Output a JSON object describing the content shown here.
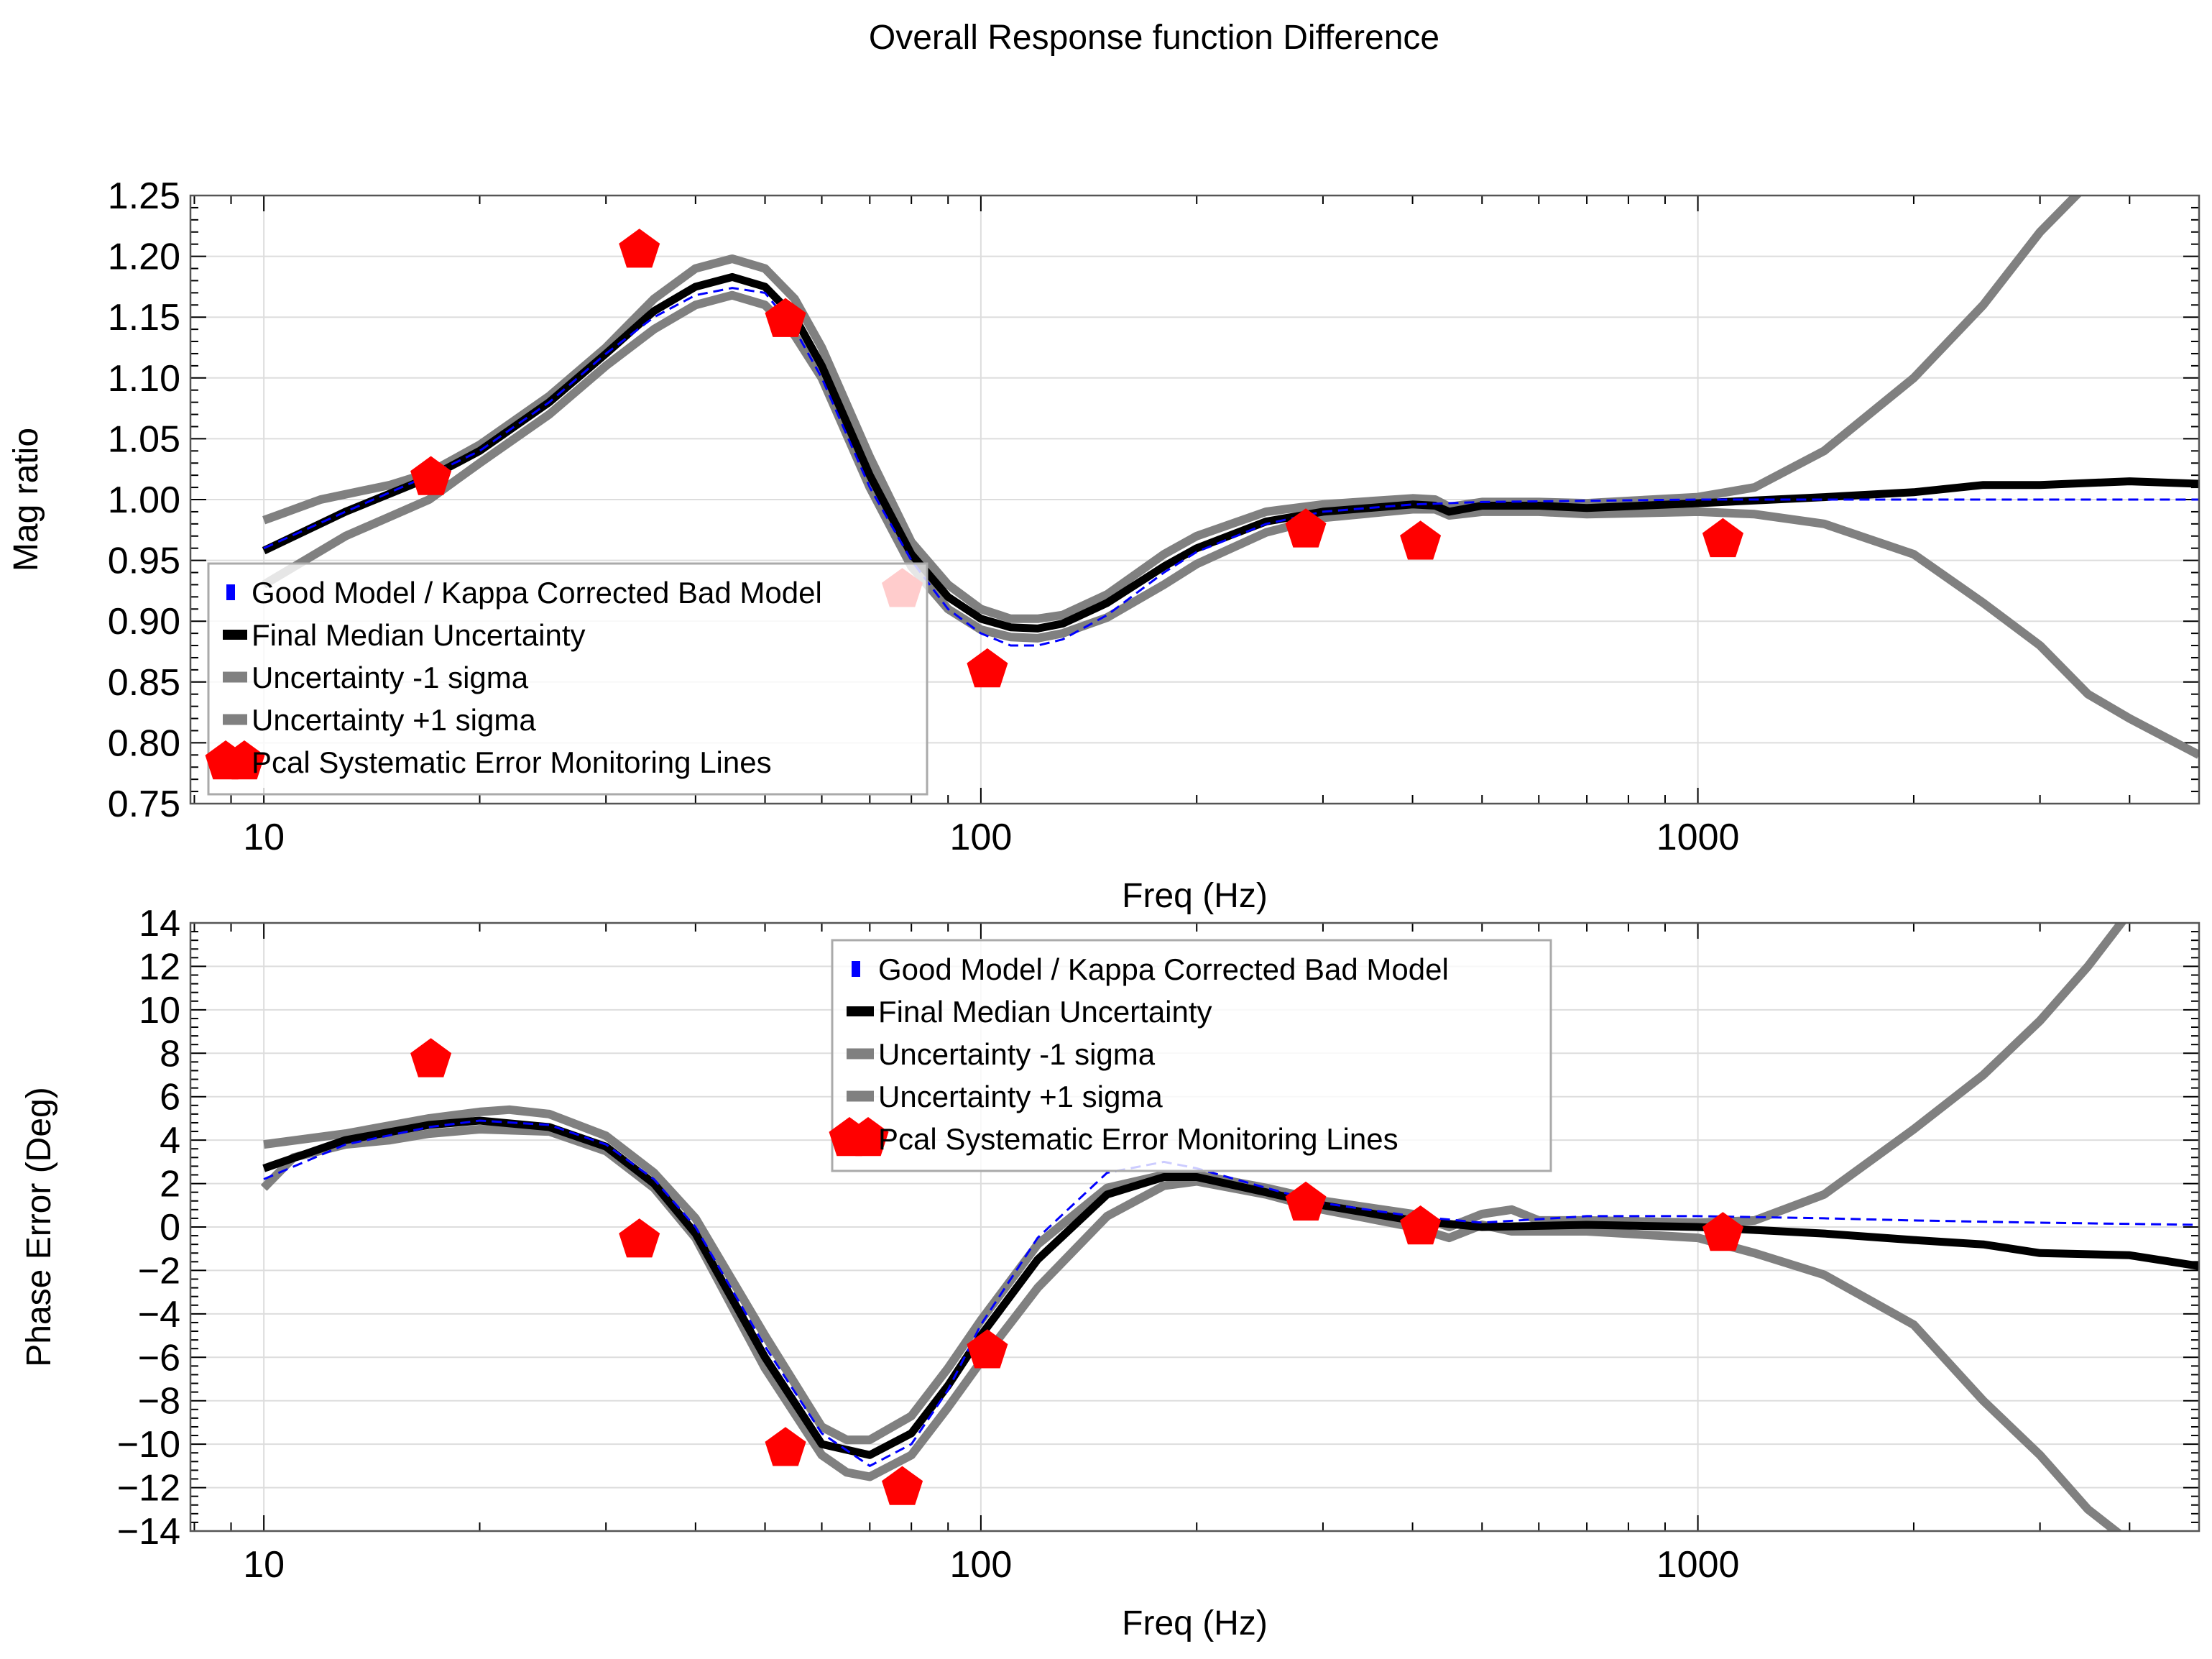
{
  "figure": {
    "suptitle": "Overall Response function Difference"
  },
  "styles": {
    "good_model_color": "#0000ff",
    "median_color": "#000000",
    "sigma_color": "#808080",
    "pcal_color": "#ff0000",
    "legend_border": "#aaaaaa",
    "grid_color": "#dddddd"
  },
  "chart_data": [
    {
      "type": "line",
      "panel": "magnitude",
      "xlabel": "Freq (Hz)",
      "ylabel": "Mag ratio",
      "xscale": "log",
      "xlim": [
        7.9,
        5000
      ],
      "ylim": [
        0.75,
        1.25
      ],
      "xticks": [
        10,
        100,
        1000
      ],
      "xtick_labels": [
        "10",
        "100",
        "1000"
      ],
      "yticks": [
        0.75,
        0.8,
        0.85,
        0.9,
        0.95,
        1.0,
        1.05,
        1.1,
        1.15,
        1.2,
        1.25
      ],
      "ytick_labels": [
        "0.75",
        "0.80",
        "0.85",
        "0.90",
        "0.95",
        "1.00",
        "1.05",
        "1.10",
        "1.15",
        "1.20",
        "1.25"
      ],
      "grid": true,
      "legend_position": "lower-left",
      "series": [
        {
          "name": "Good Model / Kappa Corrected Bad Model",
          "style": "dashed",
          "x": [
            10,
            13,
            17,
            20,
            25,
            30,
            35,
            40,
            45,
            50,
            55,
            60,
            70,
            80,
            90,
            100,
            110,
            120,
            130,
            150,
            180,
            200,
            250,
            300,
            400,
            500,
            700,
            1000,
            1500,
            2000,
            3000,
            5000
          ],
          "y": [
            0.96,
            0.99,
            1.02,
            1.04,
            1.08,
            1.12,
            1.15,
            1.168,
            1.174,
            1.17,
            1.14,
            1.1,
            1.01,
            0.95,
            0.91,
            0.89,
            0.88,
            0.88,
            0.885,
            0.905,
            0.94,
            0.957,
            0.98,
            0.99,
            0.996,
            0.998,
            0.999,
            1.0,
            1.0,
            1.0,
            1.0,
            1.0
          ]
        },
        {
          "name": "Final Median Uncertainty",
          "style": "solid",
          "x": [
            10,
            13,
            17,
            20,
            25,
            30,
            35,
            40,
            45,
            50,
            55,
            60,
            70,
            80,
            90,
            100,
            110,
            120,
            130,
            150,
            180,
            200,
            250,
            300,
            400,
            430,
            450,
            500,
            600,
            700,
            1000,
            1500,
            2000,
            2500,
            3000,
            4000,
            5000
          ],
          "y": [
            0.958,
            0.99,
            1.018,
            1.04,
            1.08,
            1.12,
            1.155,
            1.175,
            1.183,
            1.175,
            1.15,
            1.11,
            1.02,
            0.955,
            0.92,
            0.902,
            0.895,
            0.894,
            0.898,
            0.915,
            0.945,
            0.96,
            0.982,
            0.99,
            0.996,
            0.995,
            0.99,
            0.995,
            0.995,
            0.993,
            0.997,
            1.002,
            1.006,
            1.012,
            1.012,
            1.015,
            1.013
          ]
        },
        {
          "name": "Uncertainty -1 sigma",
          "style": "solid",
          "x": [
            10,
            13,
            17,
            20,
            25,
            30,
            35,
            40,
            45,
            50,
            55,
            60,
            70,
            80,
            90,
            100,
            110,
            120,
            130,
            150,
            180,
            200,
            250,
            300,
            400,
            430,
            450,
            500,
            600,
            700,
            1000,
            1200,
            1500,
            2000,
            2500,
            3000,
            3500,
            4000,
            5000
          ],
          "y": [
            0.93,
            0.97,
            1.0,
            1.03,
            1.07,
            1.11,
            1.14,
            1.16,
            1.168,
            1.16,
            1.135,
            1.1,
            1.01,
            0.945,
            0.91,
            0.893,
            0.887,
            0.886,
            0.89,
            0.903,
            0.93,
            0.947,
            0.973,
            0.985,
            0.992,
            0.992,
            0.987,
            0.99,
            0.99,
            0.988,
            0.99,
            0.988,
            0.98,
            0.955,
            0.915,
            0.88,
            0.84,
            0.82,
            0.79
          ]
        },
        {
          "name": "Uncertainty +1 sigma",
          "style": "solid",
          "x": [
            10,
            12,
            15,
            17,
            20,
            25,
            30,
            35,
            40,
            45,
            50,
            55,
            60,
            70,
            80,
            90,
            100,
            110,
            120,
            130,
            150,
            180,
            200,
            250,
            300,
            400,
            430,
            450,
            500,
            600,
            700,
            1000,
            1200,
            1500,
            2000,
            2500,
            3000,
            3500
          ],
          "y": [
            0.983,
            1.0,
            1.012,
            1.022,
            1.045,
            1.085,
            1.125,
            1.165,
            1.19,
            1.198,
            1.19,
            1.165,
            1.125,
            1.035,
            0.965,
            0.93,
            0.91,
            0.902,
            0.902,
            0.905,
            0.922,
            0.955,
            0.97,
            0.99,
            0.996,
            1.001,
            1.0,
            0.994,
            0.998,
            0.998,
            0.997,
            1.002,
            1.01,
            1.04,
            1.1,
            1.16,
            1.22,
            1.26
          ]
        }
      ],
      "markers": {
        "name": "Pcal Systematic Error Monitoring Lines",
        "x": [
          17.1,
          33.4,
          53.4,
          77.7,
          102.1,
          283.9,
          410.3,
          1083.7
        ],
        "y": [
          1.018,
          1.205,
          1.148,
          0.926,
          0.86,
          0.975,
          0.965,
          0.967
        ]
      }
    },
    {
      "type": "line",
      "panel": "phase",
      "xlabel": "Freq (Hz)",
      "ylabel": "Phase Error (Deg)",
      "xscale": "log",
      "xlim": [
        7.9,
        5000
      ],
      "ylim": [
        -14,
        14
      ],
      "xticks": [
        10,
        100,
        1000
      ],
      "xtick_labels": [
        "10",
        "100",
        "1000"
      ],
      "yticks": [
        -14,
        -12,
        -10,
        -8,
        -6,
        -4,
        -2,
        0,
        2,
        4,
        6,
        8,
        10,
        12,
        14
      ],
      "ytick_labels": [
        "−14",
        "−12",
        "−10",
        "−8",
        "−6",
        "−4",
        "−2",
        "0",
        "2",
        "4",
        "6",
        "8",
        "10",
        "12",
        "14"
      ],
      "grid": true,
      "legend_position": "upper-center",
      "series": [
        {
          "name": "Good Model / Kappa Corrected Bad Model",
          "style": "dashed",
          "x": [
            10,
            13,
            17,
            20,
            25,
            30,
            35,
            40,
            50,
            60,
            70,
            80,
            90,
            100,
            120,
            150,
            180,
            200,
            250,
            300,
            400,
            500,
            700,
            1000,
            1500,
            2000,
            3000,
            5000
          ],
          "y": [
            2.2,
            3.8,
            4.6,
            4.9,
            4.7,
            3.8,
            2.2,
            0.0,
            -5.5,
            -9.5,
            -11.0,
            -10.0,
            -7.5,
            -4.5,
            -0.5,
            2.5,
            3.0,
            2.7,
            1.8,
            1.1,
            0.5,
            0.2,
            0.5,
            0.5,
            0.4,
            0.3,
            0.2,
            0.1
          ]
        },
        {
          "name": "Final Median Uncertainty",
          "style": "solid",
          "x": [
            10,
            13,
            17,
            20,
            25,
            30,
            35,
            40,
            50,
            60,
            70,
            80,
            90,
            100,
            120,
            150,
            180,
            200,
            250,
            300,
            400,
            500,
            700,
            1000,
            1500,
            2000,
            2500,
            3000,
            4000,
            5000
          ],
          "y": [
            2.7,
            4.0,
            4.7,
            4.9,
            4.6,
            3.7,
            2.0,
            -0.3,
            -6.0,
            -10.0,
            -10.5,
            -9.5,
            -7.3,
            -5.0,
            -1.5,
            1.5,
            2.3,
            2.3,
            1.6,
            1.0,
            0.3,
            0.0,
            0.1,
            0.0,
            -0.3,
            -0.6,
            -0.8,
            -1.2,
            -1.3,
            -1.8
          ]
        },
        {
          "name": "Uncertainty -1 sigma",
          "style": "solid",
          "x": [
            10,
            11,
            13,
            15,
            17,
            20,
            25,
            30,
            35,
            40,
            50,
            60,
            65,
            70,
            80,
            90,
            100,
            120,
            150,
            180,
            200,
            250,
            300,
            400,
            450,
            500,
            550,
            600,
            700,
            1000,
            1200,
            1500,
            2000,
            2500,
            3000,
            3500,
            4000
          ],
          "y": [
            1.8,
            3.2,
            3.8,
            4.0,
            4.3,
            4.5,
            4.4,
            3.5,
            1.8,
            -0.5,
            -6.5,
            -10.5,
            -11.3,
            -11.5,
            -10.5,
            -8.3,
            -6.2,
            -2.8,
            0.5,
            1.9,
            2.1,
            1.5,
            0.8,
            0.0,
            -0.5,
            0.1,
            -0.2,
            -0.2,
            -0.2,
            -0.5,
            -1.2,
            -2.2,
            -4.5,
            -8.0,
            -10.5,
            -13.0,
            -14.5
          ]
        },
        {
          "name": "Uncertainty +1 sigma",
          "style": "solid",
          "x": [
            10,
            13,
            17,
            20,
            22,
            25,
            30,
            35,
            40,
            50,
            60,
            65,
            70,
            80,
            90,
            100,
            120,
            150,
            180,
            200,
            250,
            300,
            400,
            450,
            500,
            550,
            600,
            700,
            1000,
            1200,
            1500,
            2000,
            2500,
            3000,
            3500,
            4000
          ],
          "y": [
            3.8,
            4.3,
            5.0,
            5.3,
            5.4,
            5.2,
            4.2,
            2.5,
            0.4,
            -5.0,
            -9.2,
            -9.8,
            -9.8,
            -8.7,
            -6.5,
            -4.3,
            -0.8,
            1.8,
            2.4,
            2.4,
            1.8,
            1.2,
            0.6,
            0.0,
            0.6,
            0.8,
            0.3,
            0.3,
            0.2,
            0.3,
            1.5,
            4.5,
            7.0,
            9.5,
            12.0,
            14.5
          ]
        }
      ],
      "markers": {
        "name": "Pcal Systematic Error Monitoring Lines",
        "x": [
          17.1,
          33.4,
          53.4,
          77.7,
          102.1,
          283.9,
          410.3,
          1083.7
        ],
        "y": [
          7.7,
          -0.6,
          -10.2,
          -12.0,
          -5.7,
          1.1,
          0.0,
          -0.3
        ]
      }
    }
  ]
}
